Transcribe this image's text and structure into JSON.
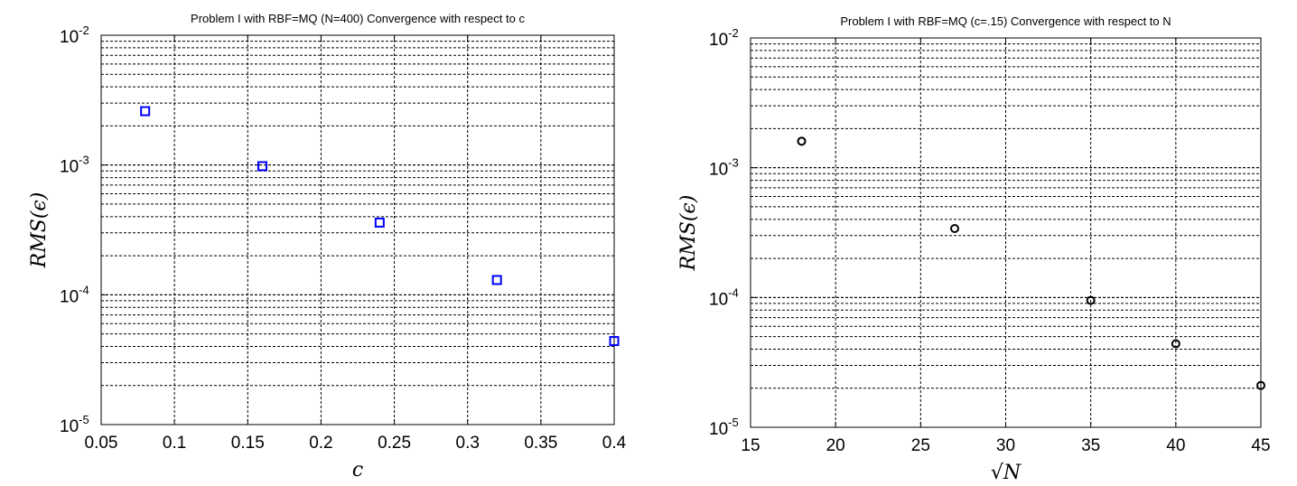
{
  "chart_data": [
    {
      "type": "scatter",
      "title": "Problem I with RBF=MQ (N=400) Convergence with respect to c",
      "xlabel": "c",
      "ylabel": "RMS(ϵ)",
      "x_scale": "linear",
      "y_scale": "log",
      "xlim": [
        0.05,
        0.4
      ],
      "ylim": [
        1e-05,
        0.01
      ],
      "x_ticks": [
        0.05,
        0.1,
        0.15,
        0.2,
        0.25,
        0.3,
        0.35,
        0.4
      ],
      "x_tick_labels": [
        "0.05",
        "0.1",
        "0.15",
        "0.2",
        "0.25",
        "0.3",
        "0.35",
        "0.4"
      ],
      "y_ticks": [
        {
          "base": "10",
          "exp": "-5"
        },
        {
          "base": "10",
          "exp": "-4"
        },
        {
          "base": "10",
          "exp": "-3"
        },
        {
          "base": "10",
          "exp": "-2"
        }
      ],
      "grid": true,
      "marker": "square",
      "marker_color": "#0000ff",
      "series": [
        {
          "x": [
            0.08,
            0.16,
            0.24,
            0.32,
            0.4
          ],
          "y": [
            0.0026,
            0.00098,
            0.00036,
            0.00013,
            4.4e-05
          ]
        }
      ]
    },
    {
      "type": "scatter",
      "title": "Problem I with RBF=MQ (c=.15) Convergence with respect to N",
      "xlabel": "√N",
      "ylabel": "RMS(ϵ)",
      "x_scale": "linear",
      "y_scale": "log",
      "xlim": [
        15,
        45
      ],
      "ylim": [
        1e-05,
        0.01
      ],
      "x_ticks": [
        15,
        20,
        25,
        30,
        35,
        40,
        45
      ],
      "x_tick_labels": [
        "15",
        "20",
        "25",
        "30",
        "35",
        "40",
        "45"
      ],
      "y_ticks": [
        {
          "base": "10",
          "exp": "-5"
        },
        {
          "base": "10",
          "exp": "-4"
        },
        {
          "base": "10",
          "exp": "-3"
        },
        {
          "base": "10",
          "exp": "-2"
        }
      ],
      "grid": true,
      "marker": "circle",
      "marker_color": "#000000",
      "series": [
        {
          "x": [
            18,
            27,
            35,
            40,
            45
          ],
          "y": [
            0.0016,
            0.00034,
            9.5e-05,
            4.4e-05,
            2.1e-05
          ]
        }
      ]
    }
  ]
}
